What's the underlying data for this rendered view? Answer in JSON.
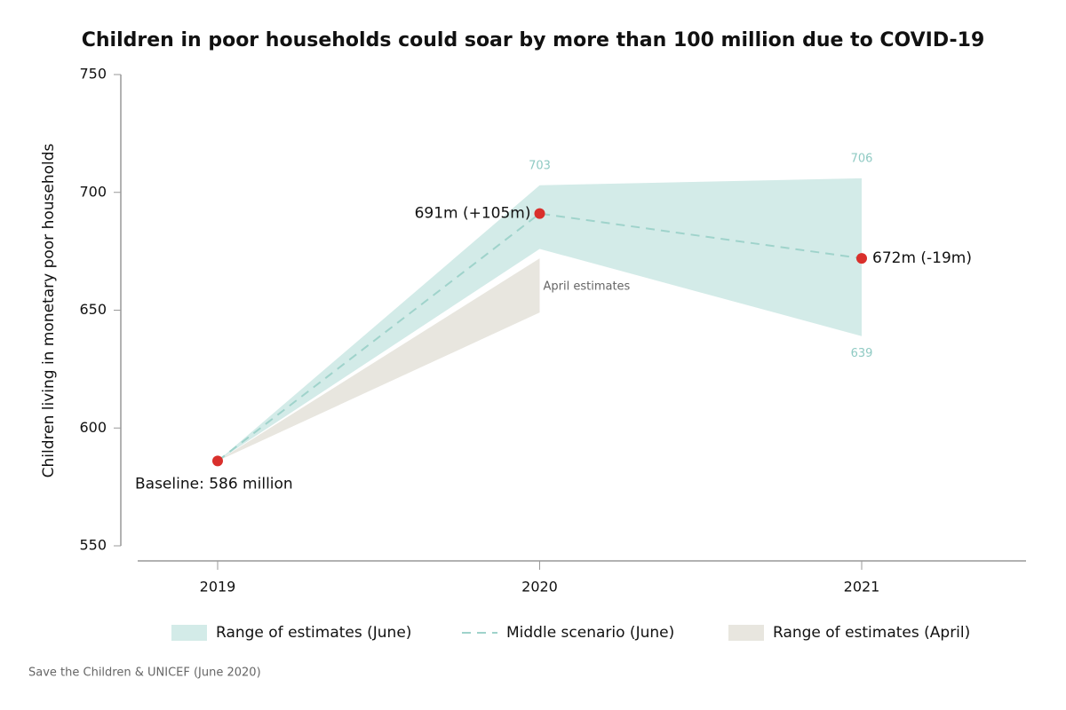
{
  "chart_data": {
    "type": "line",
    "title": "Children in poor households could soar by more than 100 million due to COVID-19",
    "y_label": "Children living in monetary poor households",
    "categories": [
      "2019",
      "2020",
      "2021"
    ],
    "ylim": [
      550,
      750
    ],
    "yticks": [
      550,
      600,
      650,
      700,
      750
    ],
    "series": [
      {
        "name": "Range of estimates (June)",
        "type": "band",
        "color": "#d3ebe8",
        "label_color": "#8fcac3",
        "upper": [
          586,
          703,
          706
        ],
        "lower": [
          586,
          676,
          639
        ]
      },
      {
        "name": "Middle scenario (June)",
        "type": "line",
        "color": "#9fd3cb",
        "marker_color": "#d9302c",
        "values": [
          586,
          691,
          672
        ],
        "value_labels": [
          "Baseline: 586 million",
          "691m (+105m)",
          "672m (-19m)"
        ]
      },
      {
        "name": "Range of estimates (April)",
        "type": "band",
        "color": "#e8e6df",
        "upper": [
          586,
          672,
          null
        ],
        "lower": [
          586,
          649,
          null
        ],
        "annotation": "April estimates"
      }
    ],
    "source": "Save the Children & UNICEF (June 2020)"
  }
}
